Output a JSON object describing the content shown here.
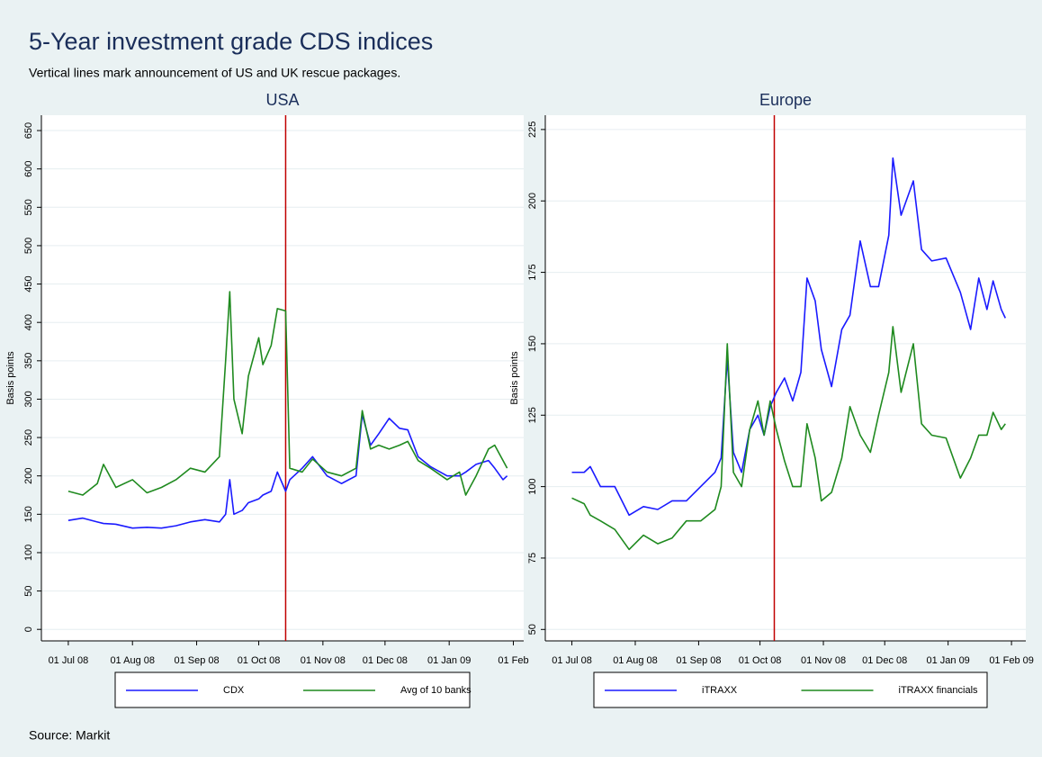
{
  "title": "5-Year investment grade CDS indices",
  "subtitle": "Vertical lines mark announcement of US and UK rescue packages.",
  "source": "Source: Markit",
  "chart_data": [
    {
      "type": "line",
      "title": "USA",
      "ylabel": "Basis points",
      "x": [
        "2008-07-01",
        "2008-07-08",
        "2008-07-15",
        "2008-07-18",
        "2008-07-24",
        "2008-08-01",
        "2008-08-08",
        "2008-08-15",
        "2008-08-22",
        "2008-08-29",
        "2008-09-05",
        "2008-09-12",
        "2008-09-15",
        "2008-09-17",
        "2008-09-19",
        "2008-09-23",
        "2008-09-26",
        "2008-10-01",
        "2008-10-03",
        "2008-10-07",
        "2008-10-10",
        "2008-10-14",
        "2008-10-16",
        "2008-10-22",
        "2008-10-27",
        "2008-11-03",
        "2008-11-10",
        "2008-11-17",
        "2008-11-20",
        "2008-11-24",
        "2008-11-28",
        "2008-12-03",
        "2008-12-08",
        "2008-12-12",
        "2008-12-17",
        "2008-12-23",
        "2008-12-31",
        "2009-01-06",
        "2009-01-09",
        "2009-01-14",
        "2009-01-20",
        "2009-01-23",
        "2009-01-27",
        "2009-01-29"
      ],
      "series": [
        {
          "name": "CDX",
          "color": "#1a1aff",
          "values": [
            142,
            145,
            140,
            138,
            137,
            132,
            133,
            132,
            135,
            140,
            143,
            140,
            150,
            195,
            150,
            155,
            165,
            170,
            175,
            180,
            205,
            180,
            195,
            210,
            225,
            200,
            190,
            200,
            280,
            240,
            255,
            275,
            262,
            260,
            225,
            212,
            200,
            200,
            205,
            215,
            220,
            210,
            195,
            200
          ]
        },
        {
          "name": "Avg of 10 banks",
          "color": "#1f8a1f",
          "values": [
            180,
            175,
            190,
            215,
            185,
            195,
            178,
            185,
            195,
            210,
            205,
            225,
            350,
            440,
            300,
            255,
            330,
            380,
            345,
            370,
            418,
            415,
            210,
            205,
            222,
            205,
            200,
            210,
            285,
            235,
            240,
            235,
            240,
            245,
            220,
            210,
            195,
            205,
            175,
            200,
            235,
            240,
            220,
            210
          ]
        }
      ],
      "vlines": [
        "2008-10-14"
      ],
      "vline_color": "#c00000",
      "xlim": [
        "2008-06-18",
        "2009-02-06"
      ],
      "xticks": [
        {
          "value": "2008-07-01",
          "label": "01 Jul 08"
        },
        {
          "value": "2008-08-01",
          "label": "01 Aug 08"
        },
        {
          "value": "2008-09-01",
          "label": "01 Sep 08"
        },
        {
          "value": "2008-10-01",
          "label": "01 Oct 08"
        },
        {
          "value": "2008-11-01",
          "label": "01 Nov 08"
        },
        {
          "value": "2008-12-01",
          "label": "01 Dec 08"
        },
        {
          "value": "2009-01-01",
          "label": "01 Jan 09"
        },
        {
          "value": "2009-02-01",
          "label": "01 Feb"
        }
      ],
      "ylim": [
        -15,
        670
      ],
      "yticks": [
        0,
        50,
        100,
        150,
        200,
        250,
        300,
        350,
        400,
        450,
        500,
        550,
        600,
        650
      ],
      "grid": true
    },
    {
      "type": "line",
      "title": "Europe",
      "ylabel": "Basis points",
      "x": [
        "2008-07-01",
        "2008-07-07",
        "2008-07-10",
        "2008-07-15",
        "2008-07-22",
        "2008-07-29",
        "2008-08-05",
        "2008-08-12",
        "2008-08-19",
        "2008-08-26",
        "2008-09-02",
        "2008-09-09",
        "2008-09-12",
        "2008-09-15",
        "2008-09-18",
        "2008-09-22",
        "2008-09-26",
        "2008-09-30",
        "2008-10-03",
        "2008-10-06",
        "2008-10-09",
        "2008-10-13",
        "2008-10-17",
        "2008-10-21",
        "2008-10-24",
        "2008-10-28",
        "2008-10-31",
        "2008-11-05",
        "2008-11-10",
        "2008-11-14",
        "2008-11-19",
        "2008-11-24",
        "2008-11-28",
        "2008-12-03",
        "2008-12-05",
        "2008-12-09",
        "2008-12-15",
        "2008-12-19",
        "2008-12-24",
        "2008-12-31",
        "2009-01-07",
        "2009-01-12",
        "2009-01-16",
        "2009-01-20",
        "2009-01-23",
        "2009-01-27",
        "2009-01-29"
      ],
      "series": [
        {
          "name": "iTRAXX",
          "color": "#1a1aff",
          "values": [
            105,
            105,
            107,
            100,
            100,
            90,
            93,
            92,
            95,
            95,
            100,
            105,
            110,
            145,
            112,
            105,
            120,
            125,
            118,
            128,
            133,
            138,
            130,
            140,
            173,
            165,
            148,
            135,
            155,
            160,
            186,
            170,
            170,
            188,
            215,
            195,
            207,
            183,
            179,
            180,
            168,
            155,
            173,
            162,
            172,
            162,
            159
          ]
        },
        {
          "name": "iTRAXX financials",
          "color": "#1f8a1f",
          "values": [
            96,
            94,
            90,
            88,
            85,
            78,
            83,
            80,
            82,
            88,
            88,
            92,
            100,
            150,
            105,
            100,
            120,
            130,
            118,
            130,
            120,
            109,
            100,
            100,
            122,
            110,
            95,
            98,
            110,
            128,
            118,
            112,
            125,
            140,
            156,
            133,
            150,
            122,
            118,
            117,
            103,
            110,
            118,
            118,
            126,
            120,
            122
          ]
        }
      ],
      "vlines": [
        "2008-10-08"
      ],
      "vline_color": "#c00000",
      "xlim": [
        "2008-06-18",
        "2009-02-08"
      ],
      "xticks": [
        {
          "value": "2008-07-01",
          "label": "01 Jul 08"
        },
        {
          "value": "2008-08-01",
          "label": "01 Aug 08"
        },
        {
          "value": "2008-09-01",
          "label": "01 Sep 08"
        },
        {
          "value": "2008-10-01",
          "label": "01 Oct 08"
        },
        {
          "value": "2008-11-01",
          "label": "01 Nov 08"
        },
        {
          "value": "2008-12-01",
          "label": "01 Dec 08"
        },
        {
          "value": "2009-01-01",
          "label": "01 Jan 09"
        },
        {
          "value": "2009-02-01",
          "label": "01 Feb 09"
        }
      ],
      "ylim": [
        46,
        230
      ],
      "yticks": [
        50,
        75,
        100,
        125,
        150,
        175,
        200,
        225
      ],
      "grid": true
    }
  ]
}
